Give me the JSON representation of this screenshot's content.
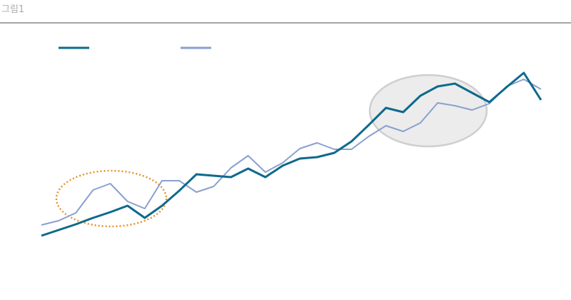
{
  "chart_data": {
    "type": "line",
    "title": "그림1",
    "categories": [
      null,
      null,
      null,
      null,
      null,
      null,
      null,
      null,
      null,
      null,
      null,
      null,
      null,
      null,
      null,
      null,
      null,
      null,
      null,
      null,
      null,
      null,
      null,
      null,
      null,
      null,
      null,
      null,
      null,
      null
    ],
    "series": [
      {
        "color": "#0e6a8c",
        "values": [
          90,
          98,
          106,
          115,
          123,
          132,
          115,
          132,
          153,
          176,
          174,
          172,
          184,
          172,
          188,
          198,
          200,
          206,
          222,
          245,
          269,
          263,
          286,
          299,
          303,
          290,
          277,
          298,
          318,
          280
        ]
      },
      {
        "color": "#8aa0cf",
        "values": [
          105,
          111,
          122,
          154,
          163,
          138,
          128,
          167,
          167,
          151,
          159,
          185,
          202,
          179,
          192,
          212,
          220,
          211,
          211,
          229,
          244,
          236,
          248,
          276,
          272,
          266,
          275,
          299,
          309,
          295
        ]
      }
    ],
    "ylim": [
      0,
      420
    ]
  }
}
